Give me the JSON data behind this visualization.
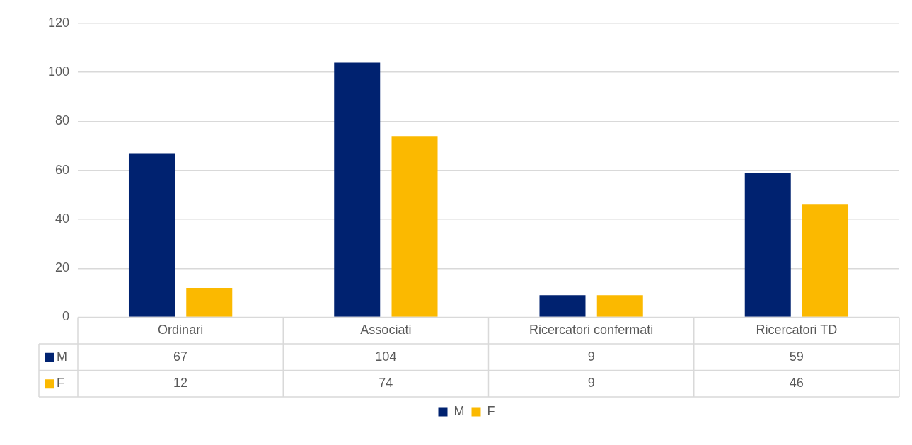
{
  "chart_data": {
    "type": "bar",
    "categories": [
      "Ordinari",
      "Associati",
      "Ricercatori confermati",
      "Ricercatori TD"
    ],
    "series": [
      {
        "name": "M",
        "color": "#002270",
        "values": [
          67,
          104,
          9,
          59
        ]
      },
      {
        "name": "F",
        "color": "#fbb900",
        "values": [
          12,
          74,
          9,
          46
        ]
      }
    ],
    "ylim": [
      0,
      120
    ],
    "yticks": [
      0,
      20,
      40,
      60,
      80,
      100,
      120
    ],
    "grid": "y",
    "legend": "bottom",
    "data_labels": true
  }
}
